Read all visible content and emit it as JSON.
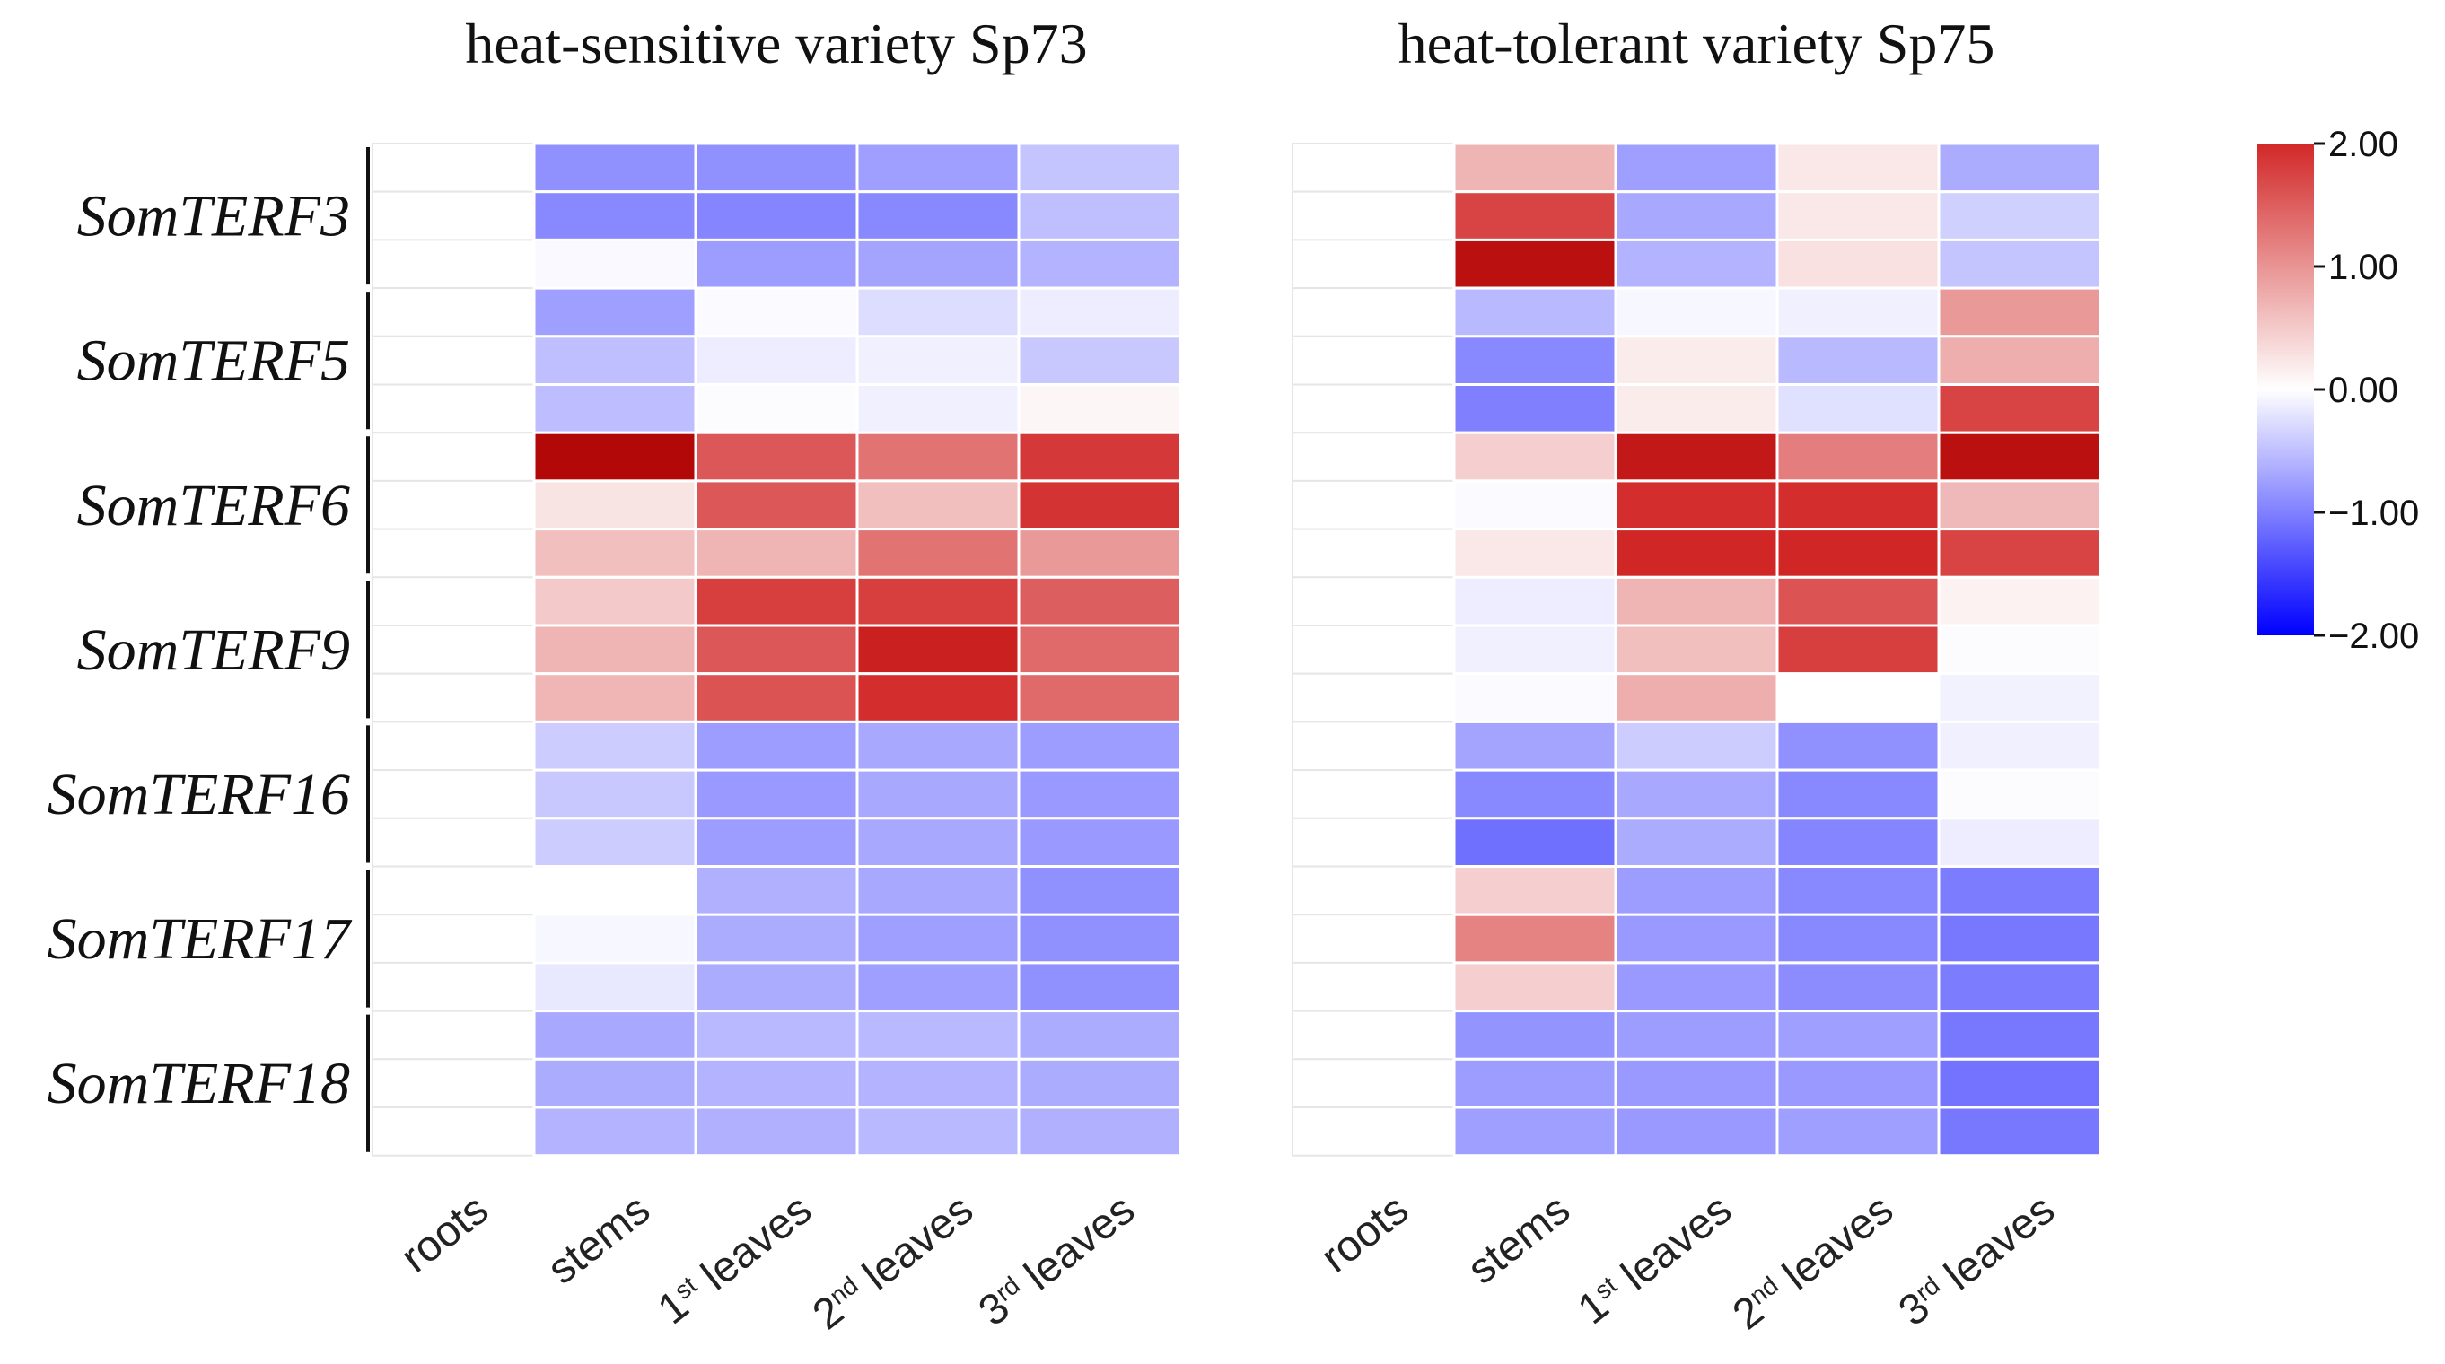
{
  "chart_data": {
    "type": "heatmap",
    "colorbar": {
      "range": [
        -2,
        2
      ],
      "ticks": [
        "2.00",
        "1.00",
        "0.00",
        "−1.00",
        "−2.00"
      ],
      "tick_values": [
        2,
        1,
        0,
        -1,
        -2
      ],
      "low_color": "#0000ff",
      "mid_color": "#ffffff",
      "high_color": "#d22828"
    },
    "columns": [
      {
        "main": "roots",
        "sup": ""
      },
      {
        "main": "stems",
        "sup": ""
      },
      {
        "main": "1",
        "sup": "st",
        "rest": " leaves"
      },
      {
        "main": "2",
        "sup": "nd",
        "rest": " leaves"
      },
      {
        "main": "3",
        "sup": "rd",
        "rest": " leaves"
      }
    ],
    "genes": [
      "SomTERF3",
      "SomTERF5",
      "SomTERF6",
      "SomTERF9",
      "SomTERF16",
      "SomTERF17",
      "SomTERF18"
    ],
    "rows_per_gene": 3,
    "panels": [
      {
        "title": "heat-sensitive variety Sp73",
        "values": [
          [
            0,
            -0.87,
            -0.87,
            -0.75,
            -0.46
          ],
          [
            0,
            -0.93,
            -0.96,
            -0.93,
            -0.5
          ],
          [
            0,
            -0.05,
            -0.77,
            -0.71,
            -0.6
          ],
          [
            0,
            -0.75,
            -0.04,
            -0.27,
            -0.14
          ],
          [
            0,
            -0.5,
            -0.14,
            -0.12,
            -0.43
          ],
          [
            0,
            -0.52,
            -0.02,
            -0.12,
            0.08
          ],
          [
            0,
            2.8,
            1.55,
            1.3,
            1.85
          ],
          [
            0,
            0.25,
            1.55,
            0.6,
            1.9
          ],
          [
            0,
            0.6,
            0.7,
            1.3,
            0.95
          ],
          [
            0,
            0.5,
            1.8,
            1.8,
            1.5
          ],
          [
            0,
            0.7,
            1.55,
            2.2,
            1.4
          ],
          [
            0,
            0.68,
            1.6,
            1.95,
            1.4
          ],
          [
            0,
            -0.4,
            -0.77,
            -0.68,
            -0.77
          ],
          [
            0,
            -0.43,
            -0.8,
            -0.68,
            -0.8
          ],
          [
            0,
            -0.4,
            -0.77,
            -0.68,
            -0.8
          ],
          [
            0,
            0,
            -0.62,
            -0.68,
            -0.87
          ],
          [
            0,
            -0.06,
            -0.65,
            -0.75,
            -0.87
          ],
          [
            0,
            -0.18,
            -0.65,
            -0.75,
            -0.87
          ],
          [
            0,
            -0.68,
            -0.55,
            -0.55,
            -0.65
          ],
          [
            0,
            -0.65,
            -0.6,
            -0.6,
            -0.65
          ],
          [
            0,
            -0.6,
            -0.62,
            -0.55,
            -0.62
          ]
        ]
      },
      {
        "title": "heat-tolerant variety Sp75",
        "values": [
          [
            0,
            0.7,
            -0.75,
            0.22,
            -0.65
          ],
          [
            0,
            1.75,
            -0.68,
            0.22,
            -0.37
          ],
          [
            0,
            2.6,
            -0.6,
            0.28,
            -0.46
          ],
          [
            0,
            -0.55,
            -0.06,
            -0.12,
            0.95
          ],
          [
            0,
            -0.93,
            0.18,
            -0.55,
            0.75
          ],
          [
            0,
            -1.0,
            0.18,
            -0.24,
            1.75
          ],
          [
            0,
            0.45,
            2.4,
            1.2,
            2.6
          ],
          [
            0,
            -0.03,
            1.95,
            1.95,
            0.65
          ],
          [
            0,
            0.22,
            2.05,
            2.05,
            1.75
          ],
          [
            0,
            -0.14,
            0.7,
            1.6,
            0.12
          ],
          [
            0,
            -0.12,
            0.6,
            1.8,
            -0.02
          ],
          [
            0,
            -0.04,
            0.75,
            0,
            -0.1
          ],
          [
            0,
            -0.71,
            -0.4,
            -0.87,
            -0.12
          ],
          [
            0,
            -0.93,
            -0.68,
            -0.93,
            -0.02
          ],
          [
            0,
            -1.12,
            -0.65,
            -0.96,
            -0.14
          ],
          [
            0,
            0.45,
            -0.77,
            -0.93,
            -1.03
          ],
          [
            0,
            1.15,
            -0.8,
            -0.93,
            -1.06
          ],
          [
            0,
            0.45,
            -0.8,
            -0.9,
            -1.03
          ],
          [
            0,
            -0.84,
            -0.77,
            -0.75,
            -1.06
          ],
          [
            0,
            -0.77,
            -0.8,
            -0.8,
            -1.1
          ],
          [
            0,
            -0.75,
            -0.8,
            -0.75,
            -1.06
          ]
        ]
      }
    ]
  }
}
